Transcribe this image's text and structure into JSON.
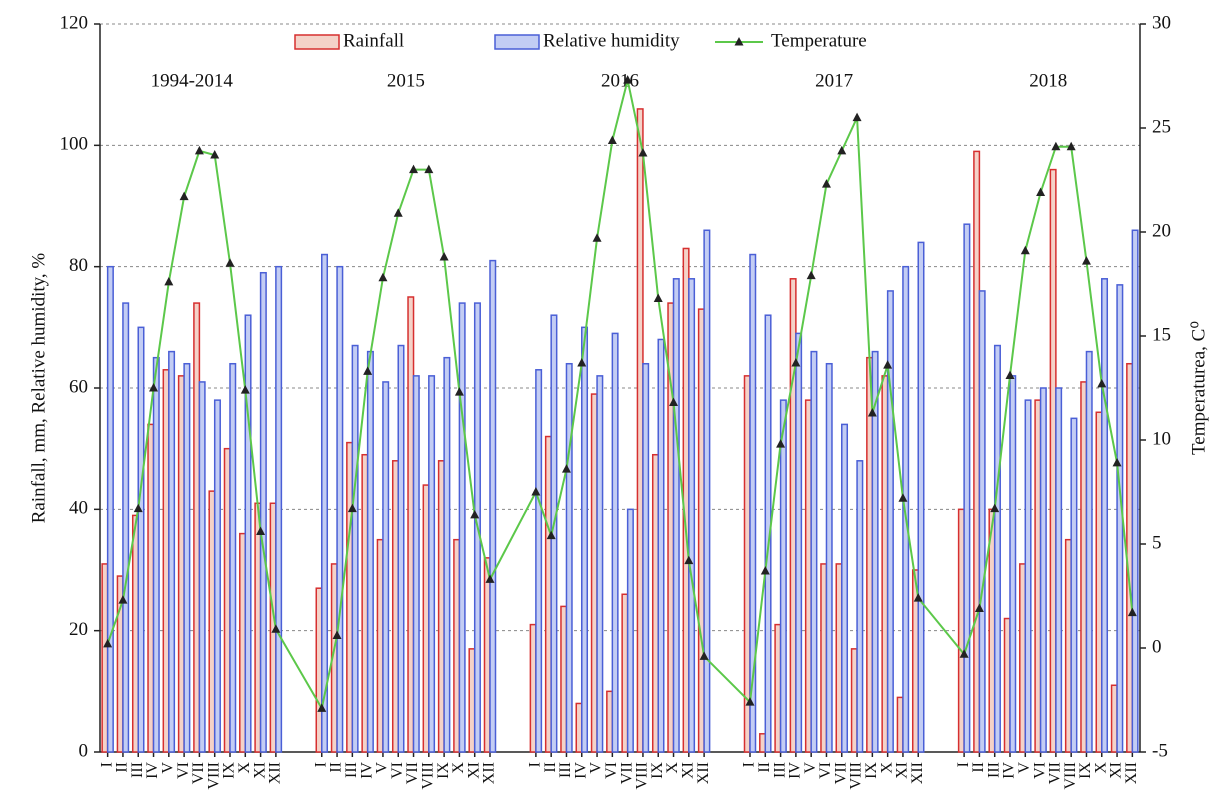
{
  "chart_data": {
    "type": "bar",
    "groups": [
      "1994-2014",
      "2015",
      "2016",
      "2017",
      "2018"
    ],
    "categories": [
      "I",
      "II",
      "III",
      "IV",
      "V",
      "VI",
      "VII",
      "VIII",
      "IX",
      "X",
      "XI",
      "XII",
      "I",
      "II",
      "III",
      "IV",
      "V",
      "VI",
      "VII",
      "VIII",
      "IX",
      "X",
      "XI",
      "XII",
      "I",
      "II",
      "III",
      "IV",
      "V",
      "VI",
      "VII",
      "VIII",
      "IX",
      "X",
      "XI",
      "XII",
      "I",
      "II",
      "III",
      "IV",
      "V",
      "VI",
      "VII",
      "VIII",
      "IX",
      "X",
      "XI",
      "XII",
      "I",
      "II",
      "III",
      "IV",
      "V",
      "VI",
      "VII",
      "VIII",
      "IX",
      "X",
      "XI",
      "XII"
    ],
    "ylabel": "Rainfall, mm, Relative humidity, %",
    "y2label": "Temperaturea, C⁰",
    "ylim": [
      0,
      120
    ],
    "yticks": [
      0,
      20,
      40,
      60,
      80,
      100,
      120
    ],
    "y2lim": [
      -5,
      30
    ],
    "y2ticks": [
      -5,
      0,
      5,
      10,
      15,
      20,
      25,
      30
    ],
    "grid": true,
    "legend": "top",
    "series": [
      {
        "name": "Rainfall",
        "type": "bar",
        "color": "#d62f2f",
        "values": [
          31,
          29,
          39,
          54,
          63,
          62,
          74,
          43,
          50,
          36,
          41,
          41,
          27,
          31,
          51,
          49,
          35,
          48,
          75,
          44,
          48,
          35,
          17,
          32,
          21,
          52,
          24,
          8,
          59,
          10,
          26,
          106,
          49,
          74,
          83,
          73,
          62,
          3,
          21,
          78,
          58,
          31,
          31,
          17,
          65,
          62,
          9,
          30,
          40,
          99,
          40,
          22,
          31,
          58,
          96,
          35,
          61,
          56,
          11,
          64
        ]
      },
      {
        "name": "Relative humidity",
        "type": "bar",
        "color": "#4a5fd6",
        "values": [
          80,
          74,
          70,
          65,
          66,
          64,
          61,
          58,
          64,
          72,
          79,
          80,
          82,
          80,
          67,
          66,
          61,
          67,
          62,
          62,
          65,
          74,
          74,
          81,
          63,
          72,
          64,
          70,
          62,
          69,
          40,
          64,
          68,
          78,
          78,
          86,
          82,
          72,
          58,
          69,
          66,
          64,
          54,
          48,
          66,
          76,
          80,
          84,
          87,
          76,
          67,
          62,
          58,
          60,
          60,
          55,
          66,
          78,
          77,
          86
        ]
      },
      {
        "name": "Temperature",
        "type": "line",
        "axis": "y2",
        "color": "#5cc84a",
        "values": [
          0.2,
          2.3,
          6.7,
          12.5,
          17.6,
          21.7,
          23.9,
          23.7,
          18.5,
          12.4,
          5.6,
          0.9,
          -2.9,
          0.6,
          6.7,
          13.3,
          17.8,
          20.9,
          23.0,
          23.0,
          18.8,
          12.3,
          6.4,
          3.3,
          7.5,
          5.4,
          8.6,
          13.7,
          19.7,
          24.4,
          27.3,
          23.8,
          16.8,
          11.8,
          4.2,
          -0.4,
          -2.6,
          3.7,
          9.8,
          13.7,
          17.9,
          22.3,
          23.9,
          25.5,
          11.3,
          13.6,
          7.2,
          2.4,
          -0.3,
          1.9,
          6.7,
          13.1,
          19.1,
          21.9,
          24.1,
          24.1,
          18.6,
          12.7,
          8.9,
          1.7
        ]
      }
    ]
  }
}
